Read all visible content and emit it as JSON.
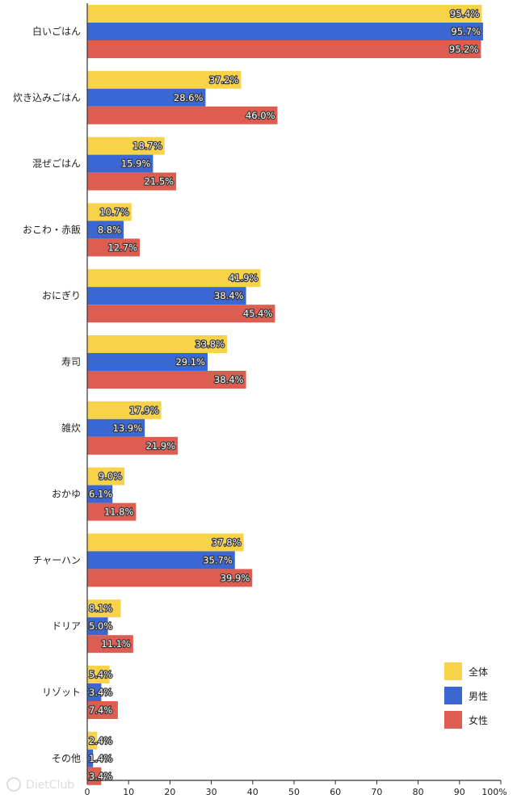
{
  "chart_data": {
    "type": "bar",
    "orientation": "horizontal",
    "categories": [
      "白いごはん",
      "炊き込みごはん",
      "混ぜごはん",
      "おこわ・赤飯",
      "おにぎり",
      "寿司",
      "雑炊",
      "おかゆ",
      "チャーハン",
      "ドリア",
      "リゾット",
      "その他"
    ],
    "series": [
      {
        "name": "全体",
        "color": "#f8d34a",
        "values": [
          95.4,
          37.2,
          18.7,
          10.7,
          41.9,
          33.8,
          17.9,
          9.0,
          37.8,
          8.1,
          5.4,
          2.4
        ],
        "labels": [
          "95.4%",
          "37.2%",
          "18.7%",
          "10.7%",
          "41.9%",
          "33.8%",
          "17.9%",
          "9.0%",
          "37.8%",
          "8.1%",
          "5.4%",
          "2.4%"
        ]
      },
      {
        "name": "男性",
        "color": "#3a67d1",
        "values": [
          95.7,
          28.6,
          15.9,
          8.8,
          38.4,
          29.1,
          13.9,
          6.1,
          35.7,
          5.0,
          3.4,
          1.4
        ],
        "labels": [
          "95.7%",
          "28.6%",
          "15.9%",
          "8.8%",
          "38.4%",
          "29.1%",
          "13.9%",
          "6.1%",
          "35.7%",
          "5.0%",
          "3.4%",
          "1.4%"
        ]
      },
      {
        "name": "女性",
        "color": "#dd5e50",
        "values": [
          95.2,
          46.0,
          21.5,
          12.7,
          45.4,
          38.4,
          21.9,
          11.8,
          39.9,
          11.1,
          7.4,
          3.4
        ],
        "labels": [
          "95.2%",
          "46.0%",
          "21.5%",
          "12.7%",
          "45.4%",
          "38.4%",
          "21.9%",
          "11.8%",
          "39.9%",
          "11.1%",
          "7.4%",
          "3.4%"
        ]
      }
    ],
    "xlim": [
      0,
      100
    ],
    "xticks": [
      "0",
      "10",
      "20",
      "30",
      "40",
      "50",
      "60",
      "70",
      "80",
      "90",
      "100%"
    ],
    "grid": false,
    "legend_position": "bottom-right"
  },
  "watermark": "DietClub"
}
